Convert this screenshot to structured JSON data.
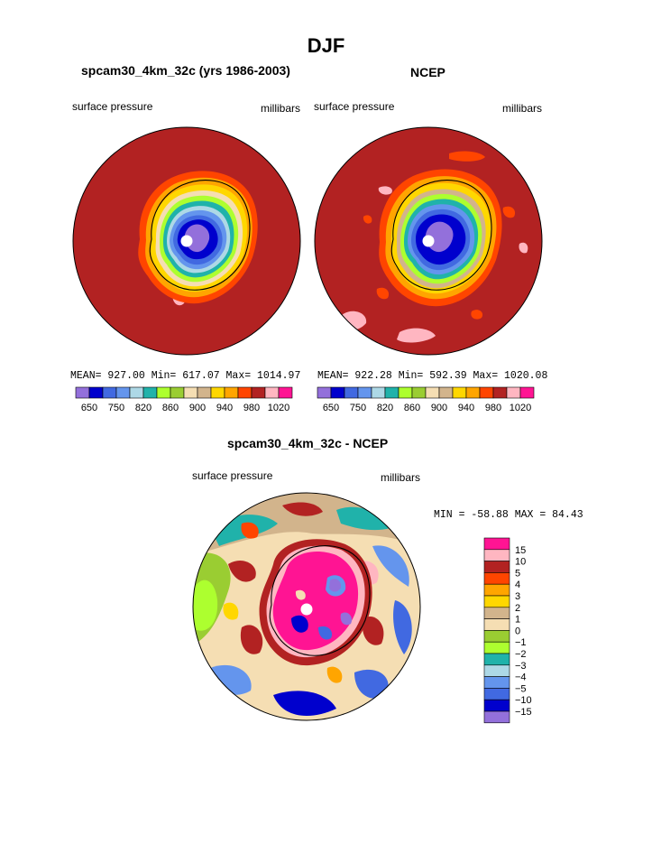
{
  "figure": {
    "title": "DJF"
  },
  "panels": [
    {
      "id": "model",
      "title": "spcam30_4km_32c (yrs 1986-2003)",
      "left_label": "surface pressure",
      "right_label": "millibars",
      "stats": "MEAN= 927.00  Min= 617.07  Max= 1014.97"
    },
    {
      "id": "obs",
      "title": "NCEP",
      "left_label": "surface pressure",
      "right_label": "millibars",
      "stats": "MEAN= 922.28  Min= 592.39  Max= 1020.08"
    }
  ],
  "colorbar_top": {
    "labels": [
      "650",
      "750",
      "820",
      "860",
      "900",
      "940",
      "980",
      "1020"
    ],
    "colors": [
      "#9370db",
      "#0000cd",
      "#4169e1",
      "#6495ed",
      "#add8e6",
      "#20b2aa",
      "#adff2f",
      "#9acd32",
      "#f5deb3",
      "#d2b48c",
      "#ffd700",
      "#ffa500",
      "#ff4500",
      "#b22222",
      "#ffb6c1",
      "#ff1493"
    ]
  },
  "diff_panel": {
    "title": "spcam30_4km_32c - NCEP",
    "left_label": "surface pressure",
    "right_label": "millibars",
    "stats": "MIN = -58.88 MAX =  84.43",
    "colorbar": {
      "labels": [
        "15",
        "10",
        "5",
        "4",
        "3",
        "2",
        "1",
        "0",
        "−1",
        "−2",
        "−3",
        "−4",
        "−5",
        "−10",
        "−15"
      ],
      "colors": [
        "#ff1493",
        "#ffb6c1",
        "#b22222",
        "#ff4500",
        "#ffa500",
        "#ffd700",
        "#d2b48c",
        "#f5deb3",
        "#9acd32",
        "#adff2f",
        "#20b2aa",
        "#add8e6",
        "#6495ed",
        "#4169e1",
        "#0000cd",
        "#9370db"
      ]
    }
  }
}
